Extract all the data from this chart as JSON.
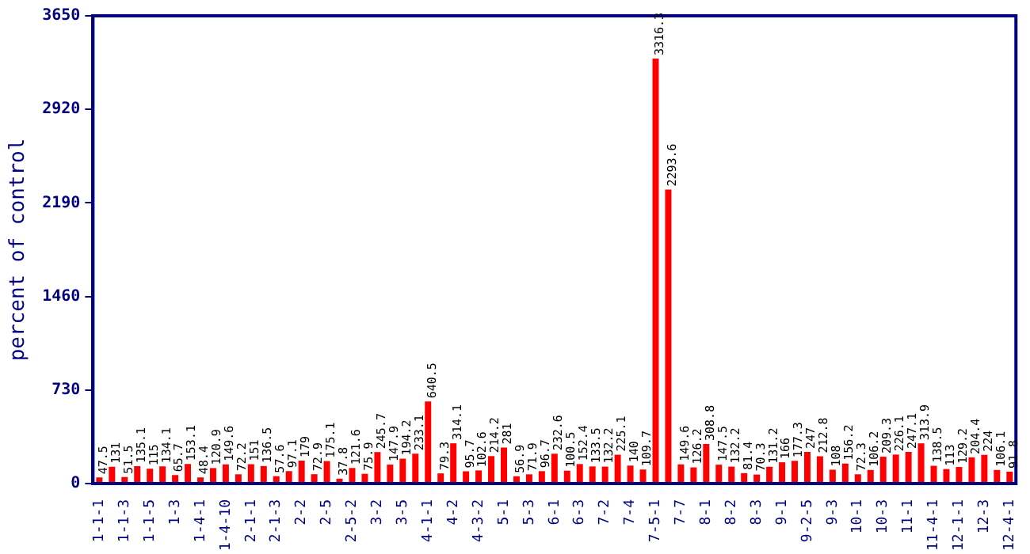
{
  "chart_data": {
    "type": "bar",
    "ylabel": "percent of control",
    "categories": [
      "1-1-1",
      null,
      "1-1-3",
      null,
      "1-1-5",
      null,
      "1-3",
      null,
      "1-4-1",
      null,
      "1-4-10",
      null,
      "2-1-1",
      null,
      "2-1-3",
      null,
      "2-2",
      null,
      "2-5",
      null,
      "2-5-2",
      null,
      "3-2",
      null,
      "3-5",
      null,
      "4-1-1",
      null,
      "4-2",
      null,
      "4-3-2",
      null,
      "5-1",
      null,
      "5-3",
      null,
      "6-1",
      null,
      "6-3",
      null,
      "7-2",
      null,
      "7-4",
      null,
      "7-5-1",
      null,
      "7-7",
      null,
      "8-1",
      null,
      "8-2",
      null,
      "8-3",
      null,
      "9-1",
      null,
      "9-2-5",
      null,
      "9-3",
      null,
      "10-1",
      null,
      "10-3",
      null,
      "11-1",
      null,
      "11-4-1",
      null,
      "12-1-1",
      null,
      "12-3",
      null,
      "12-4-1"
    ],
    "values": [
      47.5,
      131,
      51.5,
      135.1,
      115,
      134.1,
      65.7,
      153.1,
      48.4,
      120.9,
      149.6,
      72.2,
      151,
      136.5,
      57.6,
      97.1,
      179,
      72.9,
      175.1,
      37.8,
      121.6,
      75.9,
      245.7,
      147.9,
      194.2,
      233.1,
      640.5,
      79.3,
      314.1,
      95.7,
      102.6,
      214.2,
      281,
      56.9,
      71.9,
      96.7,
      232.6,
      100.5,
      152.4,
      133.5,
      132.2,
      225.1,
      140,
      109.7,
      3316.3,
      2293.6,
      149.6,
      126.2,
      308.8,
      147.5,
      132.2,
      81.4,
      70.3,
      131.2,
      166,
      177.3,
      247,
      212.8,
      108,
      156.2,
      72.3,
      106.2,
      209.3,
      226.1,
      247.1,
      313.9,
      138.5,
      113,
      129.2,
      204.4,
      224,
      106.1,
      91.8
    ],
    "color": "#ff0000",
    "data_labels": true,
    "ylim": [
      0,
      3650
    ],
    "yticks": [
      0,
      730,
      1460,
      2190,
      2920,
      3650
    ],
    "grid": false,
    "legend": false
  }
}
